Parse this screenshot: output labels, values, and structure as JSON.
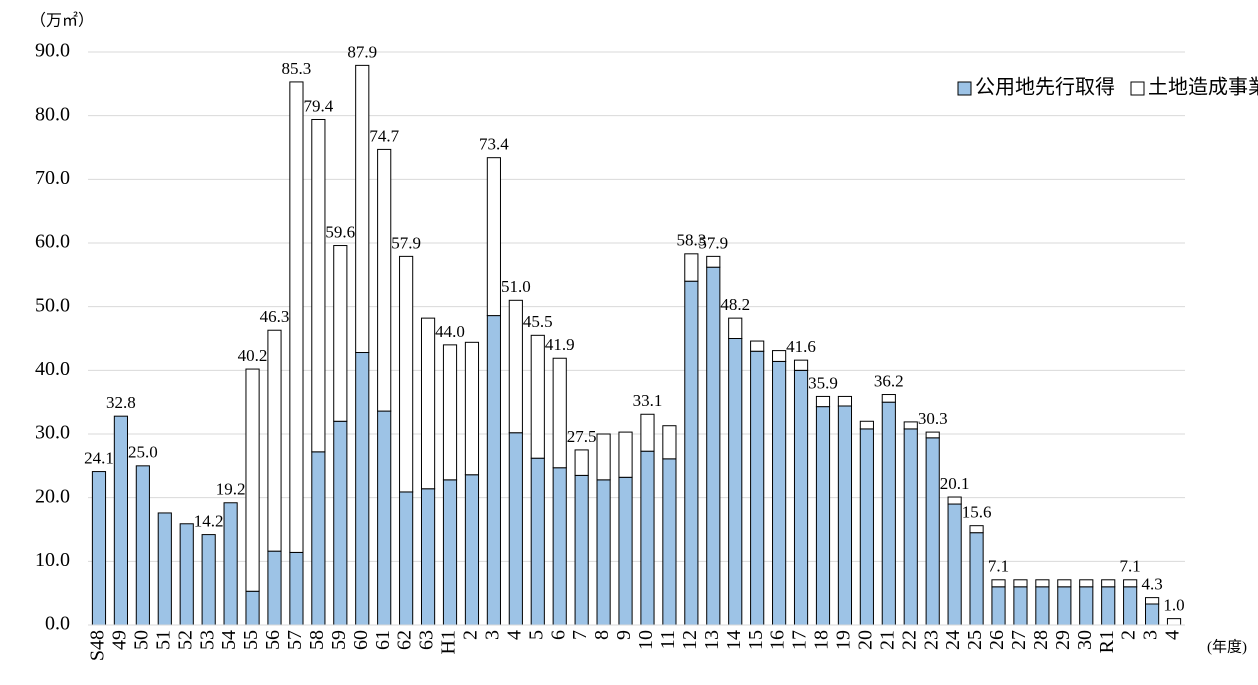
{
  "chart_data": {
    "type": "stacked-bar",
    "y_unit": "（万㎡）",
    "x_unit": "(年度)",
    "categories": [
      "S48",
      "49",
      "50",
      "51",
      "52",
      "53",
      "54",
      "55",
      "56",
      "57",
      "58",
      "59",
      "60",
      "61",
      "62",
      "63",
      "H1",
      "2",
      "3",
      "4",
      "5",
      "6",
      "7",
      "8",
      "9",
      "10",
      "11",
      "12",
      "13",
      "14",
      "15",
      "16",
      "17",
      "18",
      "19",
      "20",
      "21",
      "22",
      "23",
      "24",
      "25",
      "26",
      "27",
      "28",
      "29",
      "30",
      "R1",
      "2",
      "3",
      "4"
    ],
    "series": [
      {
        "name": "公用地先行取得",
        "color": "#9dc3e6",
        "values": [
          24.1,
          32.8,
          25.0,
          17.6,
          15.9,
          14.2,
          19.2,
          5.3,
          11.6,
          11.4,
          27.2,
          32.0,
          42.8,
          33.6,
          20.9,
          21.4,
          22.8,
          23.6,
          48.6,
          30.2,
          26.2,
          24.7,
          23.5,
          22.8,
          23.2,
          27.3,
          26.1,
          54.0,
          56.2,
          45.0,
          43.0,
          41.4,
          40.0,
          34.3,
          34.4,
          30.8,
          35.0,
          30.8,
          29.4,
          19.0,
          14.5,
          6.0,
          6.0,
          6.0,
          6.0,
          6.0,
          6.0,
          6.0,
          3.3,
          0
        ]
      },
      {
        "name": "土地造成事業",
        "color": "#ffffff",
        "values": [
          0,
          0,
          0,
          0,
          0,
          0,
          0,
          34.9,
          34.7,
          73.9,
          52.2,
          27.6,
          45.1,
          41.1,
          37.0,
          26.8,
          21.2,
          20.8,
          24.8,
          20.8,
          19.3,
          17.2,
          4.0,
          7.2,
          7.1,
          5.8,
          5.2,
          4.3,
          1.7,
          3.2,
          1.6,
          1.7,
          1.6,
          1.6,
          1.5,
          1.2,
          1.2,
          1.1,
          0.9,
          1.1,
          1.1,
          1.1,
          1.1,
          1.1,
          1.1,
          1.1,
          1.1,
          1.1,
          1.0,
          1.0
        ]
      }
    ],
    "total_labels": [
      "24.1",
      "32.8",
      "25.0",
      null,
      null,
      "14.2",
      "19.2",
      "40.2",
      "46.3",
      "85.3",
      "79.4",
      "59.6",
      "87.9",
      "74.7",
      "57.9",
      null,
      "44.0",
      null,
      "73.4",
      "51.0",
      "45.5",
      "41.9",
      "27.5",
      null,
      null,
      "33.1",
      null,
      "58.3",
      "57.9",
      "48.2",
      null,
      null,
      "41.6",
      "35.9",
      null,
      null,
      "36.2",
      null,
      "30.3",
      "20.1",
      "15.6",
      "7.1",
      null,
      null,
      null,
      null,
      null,
      "7.1",
      "4.3",
      "1.0"
    ],
    "ylim": [
      0,
      90
    ],
    "yticks": [
      {
        "value": 0,
        "label": "0.0"
      },
      {
        "value": 10,
        "label": "10.0"
      },
      {
        "value": 20,
        "label": "20.0"
      },
      {
        "value": 30,
        "label": "30.0"
      },
      {
        "value": 40,
        "label": "40.0"
      },
      {
        "value": 50,
        "label": "50.0"
      },
      {
        "value": 60,
        "label": "60.0"
      },
      {
        "value": 70,
        "label": "70.0"
      },
      {
        "value": 80,
        "label": "80.0"
      },
      {
        "value": 90,
        "label": "90.0"
      }
    ],
    "grid": true,
    "legend": "top-right"
  }
}
